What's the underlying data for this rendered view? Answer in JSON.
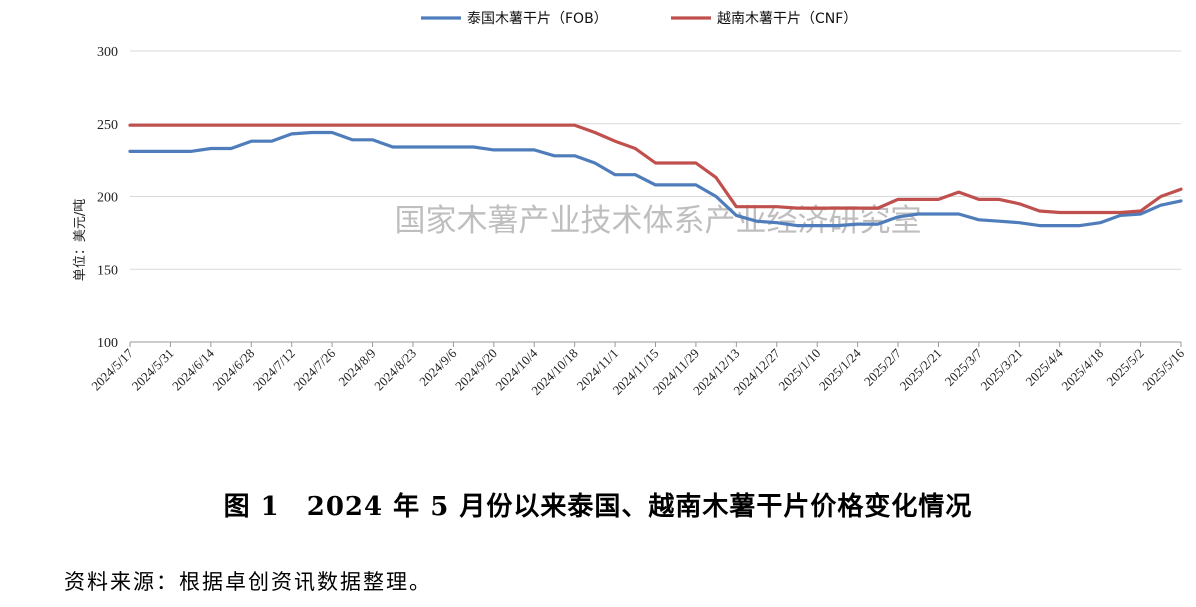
{
  "chart_data": {
    "type": "line",
    "ylabel": "单位：美元/吨",
    "ylim": [
      100,
      300
    ],
    "yticks": [
      100,
      150,
      200,
      250,
      300
    ],
    "grid": true,
    "legend_position": "top-center",
    "x": [
      "2024/5/17",
      "2024/5/24",
      "2024/5/31",
      "2024/6/7",
      "2024/6/14",
      "2024/6/21",
      "2024/6/28",
      "2024/7/5",
      "2024/7/12",
      "2024/7/19",
      "2024/7/26",
      "2024/8/2",
      "2024/8/9",
      "2024/8/16",
      "2024/8/23",
      "2024/8/30",
      "2024/9/6",
      "2024/9/13",
      "2024/9/20",
      "2024/9/27",
      "2024/10/4",
      "2024/10/11",
      "2024/10/18",
      "2024/10/25",
      "2024/11/1",
      "2024/11/8",
      "2024/11/15",
      "2024/11/22",
      "2024/11/29",
      "2024/12/6",
      "2024/12/13",
      "2024/12/20",
      "2024/12/27",
      "2025/1/3",
      "2025/1/10",
      "2025/1/17",
      "2025/1/24",
      "2025/1/31",
      "2025/2/7",
      "2025/2/14",
      "2025/2/21",
      "2025/2/28",
      "2025/3/7",
      "2025/3/14",
      "2025/3/21",
      "2025/3/28",
      "2025/4/4",
      "2025/4/11",
      "2025/4/18",
      "2025/4/25",
      "2025/5/2",
      "2025/5/9",
      "2025/5/16"
    ],
    "xtick_labels": [
      "2024/5/17",
      "2024/5/31",
      "2024/6/14",
      "2024/6/28",
      "2024/7/12",
      "2024/7/26",
      "2024/8/9",
      "2024/8/23",
      "2024/9/6",
      "2024/9/20",
      "2024/10/4",
      "2024/10/18",
      "2024/11/1",
      "2024/11/15",
      "2024/11/29",
      "2024/12/13",
      "2024/12/27",
      "2025/1/10",
      "2025/1/24",
      "2025/2/7",
      "2025/2/21",
      "2025/3/7",
      "2025/3/21",
      "2025/4/4",
      "2025/4/18",
      "2025/5/2",
      "2025/5/16"
    ],
    "series": [
      {
        "name": "泰国木薯干片（FOB）",
        "color": "#4f7dbb",
        "values": [
          231,
          231,
          231,
          231,
          233,
          233,
          238,
          238,
          243,
          244,
          244,
          239,
          239,
          234,
          234,
          234,
          234,
          234,
          232,
          232,
          232,
          228,
          228,
          223,
          215,
          215,
          208,
          208,
          208,
          200,
          187,
          183,
          182,
          180,
          180,
          180,
          181,
          181,
          186,
          188,
          188,
          188,
          184,
          183,
          182,
          180,
          180,
          180,
          182,
          187,
          188,
          194,
          197
        ]
      },
      {
        "name": "越南木薯干片（CNF）",
        "color": "#c0504d",
        "values": [
          249,
          249,
          249,
          249,
          249,
          249,
          249,
          249,
          249,
          249,
          249,
          249,
          249,
          249,
          249,
          249,
          249,
          249,
          249,
          249,
          249,
          249,
          249,
          244,
          238,
          233,
          223,
          223,
          223,
          213,
          193,
          193,
          193,
          192,
          192,
          192,
          192,
          192,
          198,
          198,
          198,
          203,
          198,
          198,
          195,
          190,
          189,
          189,
          189,
          189,
          190,
          200,
          205
        ]
      }
    ]
  },
  "watermark": "国家木薯产业技术体系产业经济研究室",
  "caption": "图 1　2024 年 5 月份以来泰国、越南木薯干片价格变化情况",
  "source": "资料来源：根据卓创资讯数据整理。"
}
